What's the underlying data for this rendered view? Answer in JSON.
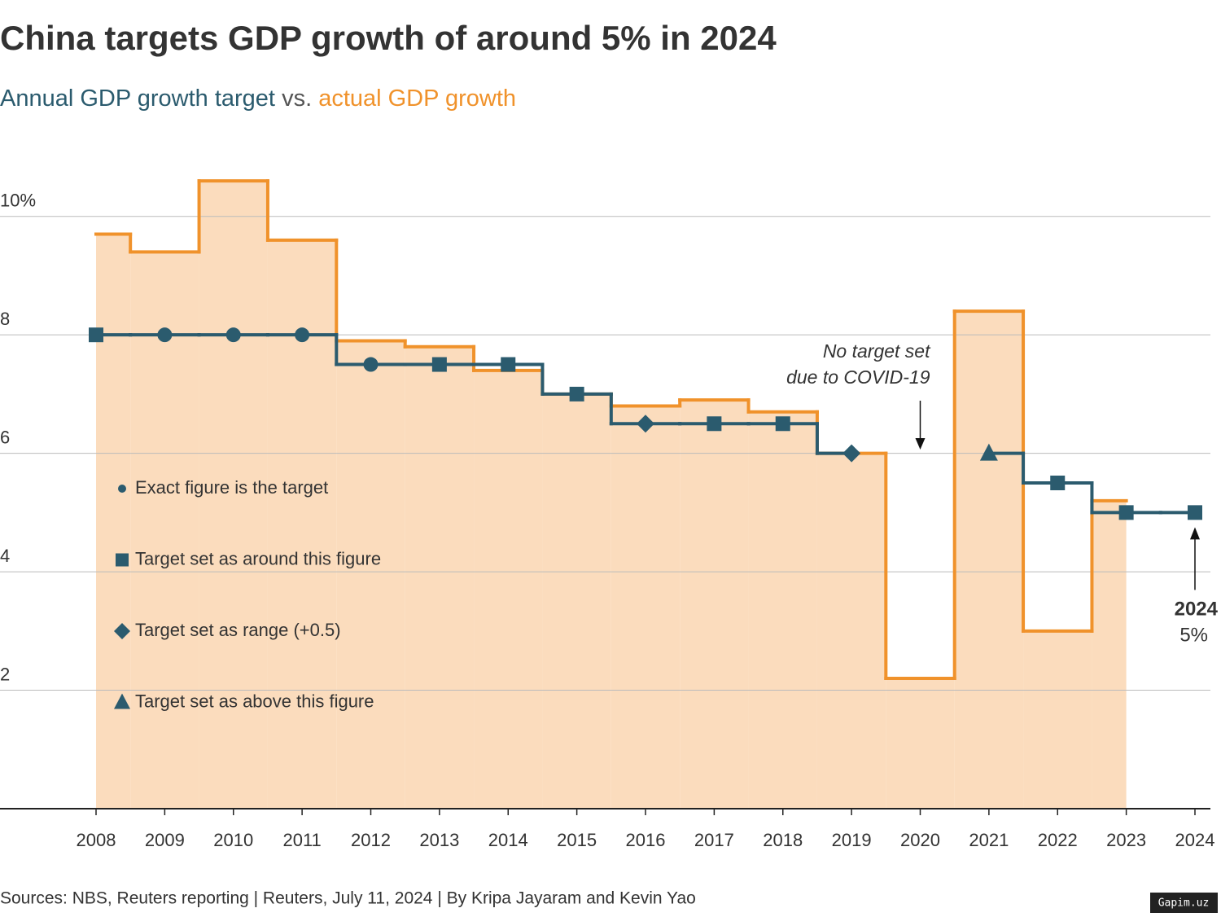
{
  "chart_data": {
    "type": "step",
    "title": "China targets GDP growth of around 5% in 2024",
    "subtitle_joiner": "vs.",
    "x": [
      2008,
      2009,
      2010,
      2011,
      2012,
      2013,
      2014,
      2015,
      2016,
      2017,
      2018,
      2019,
      2020,
      2021,
      2022,
      2023,
      2024
    ],
    "series": [
      {
        "name": "actual GDP growth",
        "color": "#f0922b",
        "fill": "#fbdcbd",
        "values": [
          9.7,
          9.4,
          10.6,
          9.6,
          7.9,
          7.8,
          7.4,
          7.0,
          6.8,
          6.9,
          6.7,
          6.0,
          2.2,
          8.4,
          3.0,
          5.2,
          null
        ]
      },
      {
        "name": "Annual GDP growth target",
        "color": "#2b5b6e",
        "values": [
          8,
          8,
          8,
          8,
          7.5,
          7.5,
          7.5,
          7,
          6.5,
          6.5,
          6.5,
          6,
          null,
          6,
          5.5,
          5,
          5
        ],
        "markers": [
          "square",
          "circle",
          "circle",
          "circle",
          "circle",
          "square",
          "square",
          "square",
          "diamond",
          "square",
          "square",
          "diamond",
          null,
          "triangle",
          "square",
          "square",
          "square"
        ],
        "value_labels": [
          null,
          null,
          null,
          null,
          null,
          null,
          null,
          null,
          null,
          null,
          null,
          null,
          null,
          null,
          null,
          null,
          "5%"
        ]
      }
    ],
    "ylim": [
      0,
      11
    ],
    "yticks": [
      2,
      4,
      6,
      8,
      {
        "value": 10,
        "label": "10%"
      }
    ],
    "grid": true,
    "legend": [
      {
        "marker": "circle",
        "label": "Exact figure is the target"
      },
      {
        "marker": "square",
        "label": "Target set as around this figure"
      },
      {
        "marker": "diamond",
        "label": "Target set as range (+0.5)"
      },
      {
        "marker": "triangle",
        "label": "Target set as above this figure"
      }
    ],
    "annotations": {
      "covid": [
        "No target set",
        "due to COVID-19"
      ],
      "latest": "2024"
    },
    "source": "Sources: NBS, Reuters reporting | Reuters, July 11, 2024 | By Kripa Jayaram and Kevin Yao",
    "watermark": "Gapim.uz"
  }
}
